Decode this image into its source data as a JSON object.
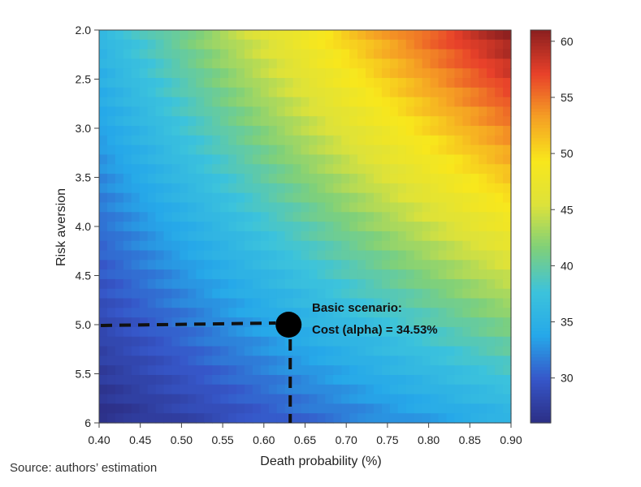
{
  "chart_data": {
    "type": "heatmap",
    "title": "",
    "xlabel": "Death probability (%)",
    "ylabel": "Risk aversion",
    "xlim": [
      0.4,
      0.9
    ],
    "ylim": [
      2.0,
      6.0
    ],
    "x_ticks": [
      "0.40",
      "0.45",
      "0.50",
      "0.55",
      "0.60",
      "0.65",
      "0.70",
      "0.75",
      "0.80",
      "0.85",
      "0.90"
    ],
    "y_ticks": [
      "2.0",
      "2.5",
      "3.0",
      "3.5",
      "4.0",
      "4.5",
      "5.0",
      "5.5",
      "6"
    ],
    "grid": {
      "x": {
        "start": 0.4,
        "end": 0.9,
        "n": 51
      },
      "y": {
        "start": 2.0,
        "end": 6.0,
        "n": 41
      }
    },
    "value_model": {
      "description": "cell value rises with death probability and falls with risk aversion",
      "corners": {
        "x0.40_y2.0": 36.0,
        "x0.90_y2.0": 61.0,
        "x0.40_y6.0": 26.0,
        "x0.90_y6.0": 35.0
      }
    },
    "colorbar": {
      "min": 26,
      "max": 61,
      "ticks": [
        "30",
        "35",
        "40",
        "45",
        "50",
        "55",
        "60"
      ],
      "colormap": [
        "#2c2e85",
        "#3657c9",
        "#26a8e9",
        "#3cc3dc",
        "#7fd07a",
        "#dde23a",
        "#f8e71c",
        "#f59f24",
        "#e8412a",
        "#8a1f1f"
      ]
    },
    "marker": {
      "x": 0.63,
      "y": 5.0,
      "label_line1": "Basic scenario:",
      "label_line2": "Cost (alpha) = 34.53%"
    }
  },
  "source": "Source: authors’ estimation"
}
